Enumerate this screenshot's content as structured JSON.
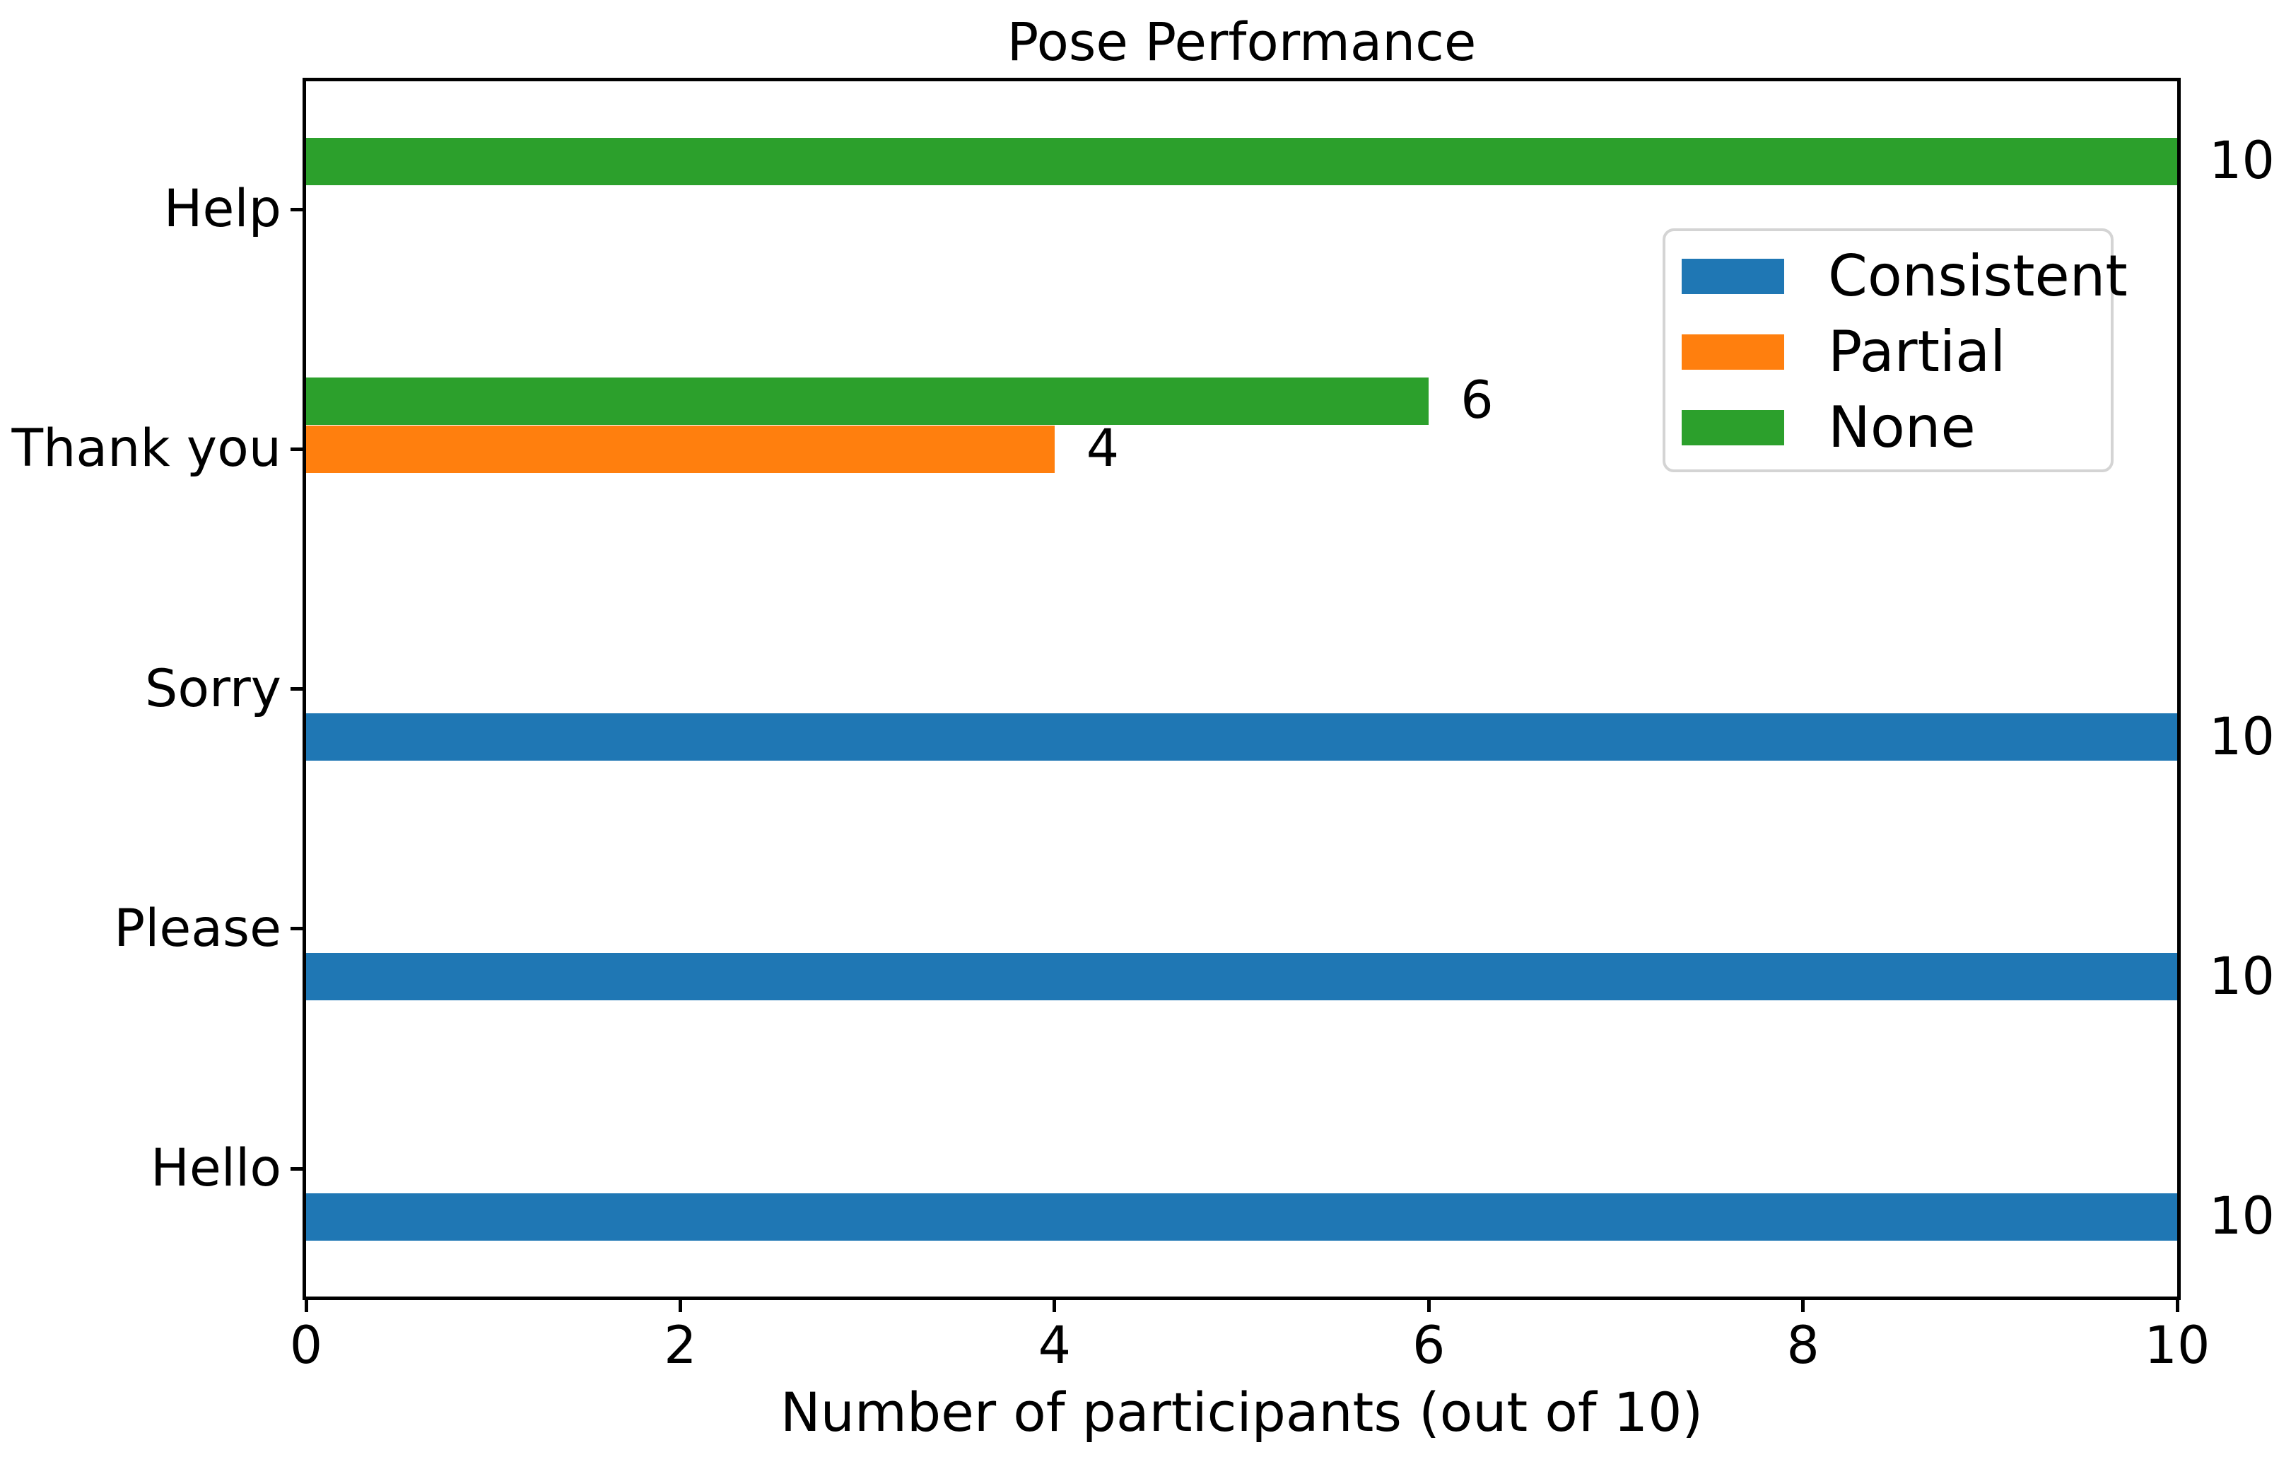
{
  "chart_data": {
    "type": "bar",
    "orientation": "horizontal",
    "title": "Pose Performance",
    "xlabel": "Number of participants (out of 10)",
    "ylabel": "",
    "xlim": [
      0,
      10
    ],
    "xticks": [
      "0",
      "2",
      "4",
      "6",
      "8",
      "10"
    ],
    "grid": false,
    "background_color": "#ffffff",
    "text_color": "#000000",
    "categories": [
      "Hello",
      "Please",
      "Sorry",
      "Thank you",
      "Help"
    ],
    "series": [
      {
        "name": "Consistent",
        "color": "#1f77b4",
        "values": [
          10,
          10,
          10,
          0,
          0
        ]
      },
      {
        "name": "Partial",
        "color": "#ff7f0e",
        "values": [
          0,
          0,
          0,
          4,
          0
        ]
      },
      {
        "name": "None",
        "color": "#2ca02c",
        "values": [
          0,
          0,
          0,
          6,
          10
        ]
      }
    ],
    "bar_value_labels_shown": true,
    "legend": {
      "position": "upper right",
      "labels": [
        "Consistent",
        "Partial",
        "None"
      ],
      "border_color": "#d4d4d4"
    }
  }
}
